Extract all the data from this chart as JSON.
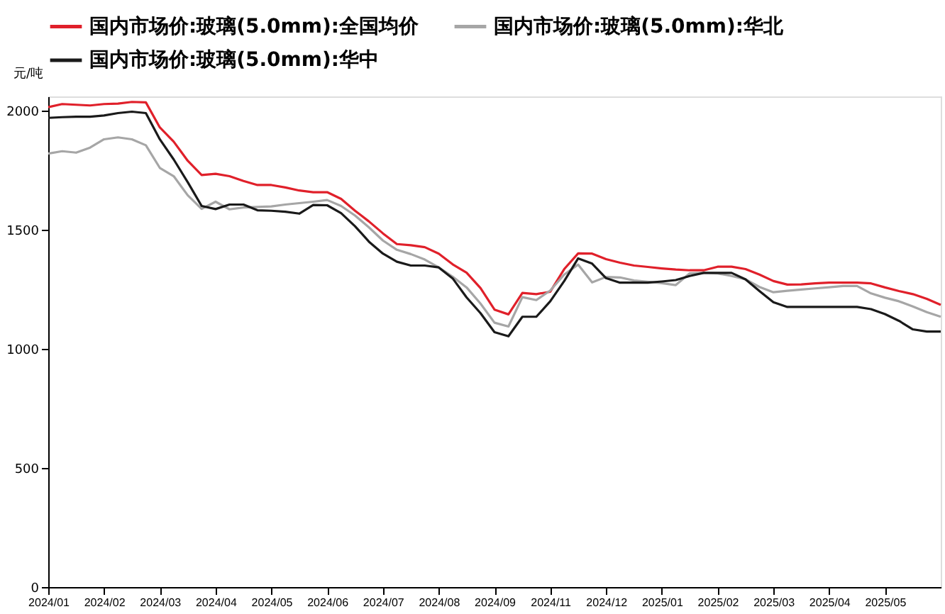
{
  "chart_data": {
    "type": "line",
    "ylabel": "元/吨",
    "legend": "top",
    "grid": false,
    "line_style": "solid",
    "marker": "none",
    "ylim": [
      0,
      2060
    ],
    "yticks": [
      0,
      500,
      1000,
      1500,
      2000
    ],
    "categories": [
      "2024/01",
      null,
      null,
      null,
      "2024/02",
      null,
      null,
      null,
      "2024/03",
      null,
      null,
      null,
      "2024/04",
      null,
      null,
      null,
      "2024/05",
      null,
      null,
      null,
      "2024/06",
      null,
      null,
      null,
      "2024/07",
      null,
      null,
      null,
      "2024/08",
      null,
      null,
      null,
      "2024/09",
      null,
      null,
      null,
      "2024/11",
      null,
      null,
      null,
      "2024/12",
      null,
      null,
      null,
      "2025/01",
      null,
      null,
      null,
      "2025/02",
      null,
      null,
      null,
      "2025/03",
      null,
      null,
      null,
      "2025/04",
      null,
      null,
      null,
      "2025/05",
      null,
      null,
      null,
      null
    ],
    "series": [
      {
        "name": "国内市场价:玻璃(5.0mm):全国均价",
        "color": "#e0202a",
        "values": [
          2015,
          2028,
          2025,
          2022,
          2028,
          2030,
          2037,
          2035,
          1930,
          1870,
          1790,
          1730,
          1735,
          1725,
          1705,
          1688,
          1688,
          1678,
          1665,
          1658,
          1658,
          1630,
          1580,
          1535,
          1485,
          1440,
          1435,
          1427,
          1400,
          1355,
          1320,
          1255,
          1165,
          1145,
          1235,
          1230,
          1240,
          1335,
          1401,
          1400,
          1377,
          1362,
          1350,
          1344,
          1338,
          1333,
          1330,
          1330,
          1345,
          1345,
          1335,
          1312,
          1285,
          1270,
          1271,
          1275,
          1278,
          1278,
          1278,
          1275,
          1258,
          1243,
          1230,
          1210,
          1185
        ]
      },
      {
        "name": "国内市场价:玻璃(5.0mm):华北",
        "color": "#a6a6a6",
        "values": [
          1820,
          1830,
          1824,
          1845,
          1880,
          1888,
          1880,
          1855,
          1760,
          1725,
          1645,
          1588,
          1618,
          1586,
          1594,
          1596,
          1598,
          1606,
          1612,
          1618,
          1625,
          1600,
          1560,
          1510,
          1455,
          1416,
          1398,
          1375,
          1342,
          1303,
          1258,
          1190,
          1110,
          1094,
          1217,
          1205,
          1245,
          1312,
          1354,
          1279,
          1302,
          1300,
          1287,
          1282,
          1276,
          1268,
          1317,
          1319,
          1317,
          1306,
          1292,
          1260,
          1238,
          1244,
          1249,
          1254,
          1259,
          1264,
          1264,
          1233,
          1215,
          1200,
          1178,
          1154,
          1135
        ]
      },
      {
        "name": "国内市场价:玻璃(5.0mm):华中",
        "color": "#1a1a1a",
        "values": [
          1970,
          1973,
          1975,
          1975,
          1980,
          1990,
          1996,
          1990,
          1880,
          1795,
          1700,
          1600,
          1587,
          1606,
          1606,
          1582,
          1580,
          1576,
          1568,
          1604,
          1603,
          1570,
          1515,
          1450,
          1400,
          1366,
          1350,
          1350,
          1342,
          1296,
          1216,
          1150,
          1070,
          1053,
          1135,
          1135,
          1200,
          1285,
          1380,
          1358,
          1297,
          1278,
          1278,
          1278,
          1283,
          1289,
          1306,
          1319,
          1319,
          1319,
          1292,
          1243,
          1196,
          1176,
          1176,
          1176,
          1176,
          1176,
          1176,
          1167,
          1146,
          1118,
          1082,
          1073,
          1073
        ]
      }
    ]
  }
}
